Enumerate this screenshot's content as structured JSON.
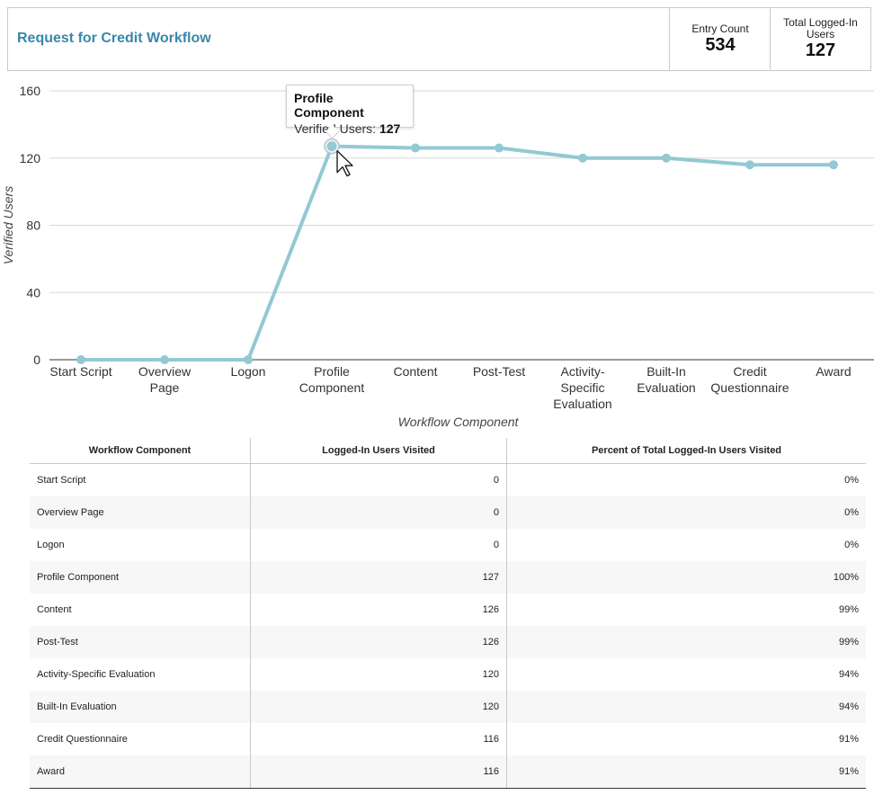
{
  "header": {
    "title": "Request for Credit Workflow",
    "entry_count_label": "Entry Count",
    "entry_count_value": "534",
    "total_users_label": "Total Logged-In Users",
    "total_users_value": "127"
  },
  "tooltip": {
    "title": "Profile Component",
    "label": "Verified Users:",
    "value": "127"
  },
  "chart_data": {
    "type": "line",
    "title": "",
    "xlabel": "Workflow Component",
    "ylabel": "Verified Users",
    "ylim": [
      0,
      160
    ],
    "yticks": [
      0,
      40,
      80,
      120,
      160
    ],
    "grid": true,
    "line_color": "#92c9d2",
    "categories": [
      "Start Script",
      "Overview Page",
      "Logon",
      "Profile Component",
      "Content",
      "Post-Test",
      "Activity-Specific Evaluation",
      "Built-In Evaluation",
      "Credit Questionnaire",
      "Award"
    ],
    "category_label_lines": [
      [
        "Start Script"
      ],
      [
        "Overview",
        "Page"
      ],
      [
        "Logon"
      ],
      [
        "Profile",
        "Component"
      ],
      [
        "Content"
      ],
      [
        "Post-Test"
      ],
      [
        "Activity-",
        "Specific",
        "Evaluation"
      ],
      [
        "Built-In",
        "Evaluation"
      ],
      [
        "Credit",
        "Questionnaire"
      ],
      [
        "Award"
      ]
    ],
    "series": [
      {
        "values": [
          0,
          0,
          0,
          127,
          126,
          126,
          120,
          120,
          116,
          116
        ]
      }
    ],
    "highlighted_index": 3
  },
  "table": {
    "headers": [
      "Workflow Component",
      "Logged-In Users Visited",
      "Percent of Total Logged-In Users Visited"
    ],
    "rows": [
      [
        "Start Script",
        "0",
        "0%"
      ],
      [
        "Overview Page",
        "0",
        "0%"
      ],
      [
        "Logon",
        "0",
        "0%"
      ],
      [
        "Profile Component",
        "127",
        "100%"
      ],
      [
        "Content",
        "126",
        "99%"
      ],
      [
        "Post-Test",
        "126",
        "99%"
      ],
      [
        "Activity-Specific Evaluation",
        "120",
        "94%"
      ],
      [
        "Built-In Evaluation",
        "120",
        "94%"
      ],
      [
        "Credit Questionnaire",
        "116",
        "91%"
      ],
      [
        "Award",
        "116",
        "91%"
      ]
    ]
  }
}
